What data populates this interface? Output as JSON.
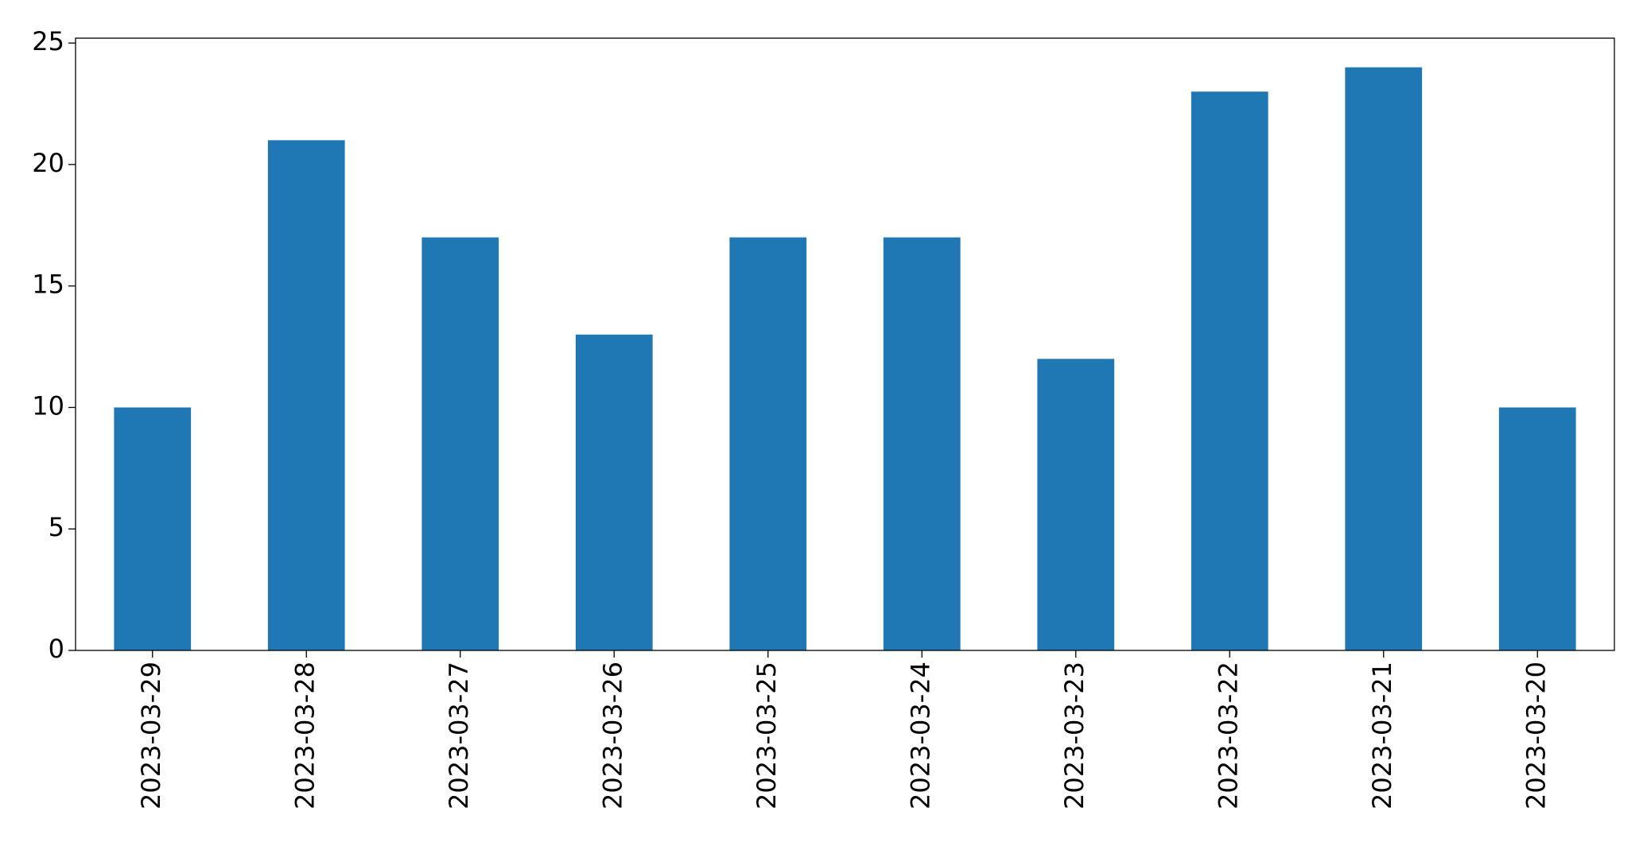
{
  "chart_data": {
    "type": "bar",
    "categories": [
      "2023-03-29",
      "2023-03-28",
      "2023-03-27",
      "2023-03-26",
      "2023-03-25",
      "2023-03-24",
      "2023-03-23",
      "2023-03-22",
      "2023-03-21",
      "2023-03-20"
    ],
    "values": [
      10,
      21,
      17,
      13,
      17,
      17,
      12,
      23,
      24,
      10
    ],
    "color": "#1f77b4",
    "ylim": [
      0,
      25.2
    ],
    "yticks": [
      0,
      5,
      10,
      15,
      20,
      25
    ],
    "grid": false
  }
}
